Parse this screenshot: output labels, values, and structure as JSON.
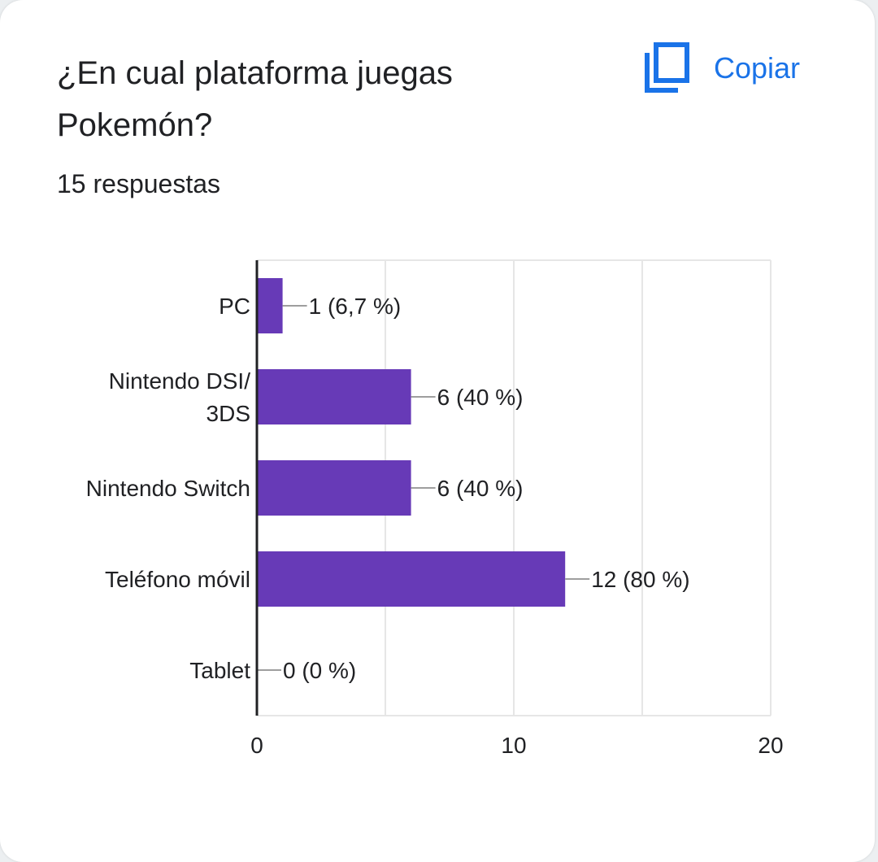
{
  "card": {
    "title": "¿En cual plataforma juegas Pokemón?",
    "responses": "15 respuestas",
    "copy_label": "Copiar",
    "copy_icon": "copy-icon"
  },
  "colors": {
    "bar": "#673ab7",
    "accent": "#1a73e8",
    "text": "#202124",
    "grid": "#e6e6e6",
    "axis": "#202124"
  },
  "chart_data": {
    "type": "bar",
    "orientation": "horizontal",
    "categories": [
      "PC",
      "Nintendo DSI/ 3DS",
      "Nintendo Switch",
      "Teléfono móvil",
      "Tablet"
    ],
    "category_lines": [
      [
        "PC"
      ],
      [
        "Nintendo DSI/",
        "3DS"
      ],
      [
        "Nintendo Switch"
      ],
      [
        "Teléfono móvil"
      ],
      [
        "Tablet"
      ]
    ],
    "values": [
      1,
      6,
      6,
      12,
      0
    ],
    "data_labels": [
      "1 (6,7 %)",
      "6 (40 %)",
      "6 (40 %)",
      "12 (80 %)",
      "0 (0 %)"
    ],
    "xlim": [
      0,
      20
    ],
    "x_ticks": [
      "0",
      "10",
      "20"
    ],
    "grid": true
  }
}
